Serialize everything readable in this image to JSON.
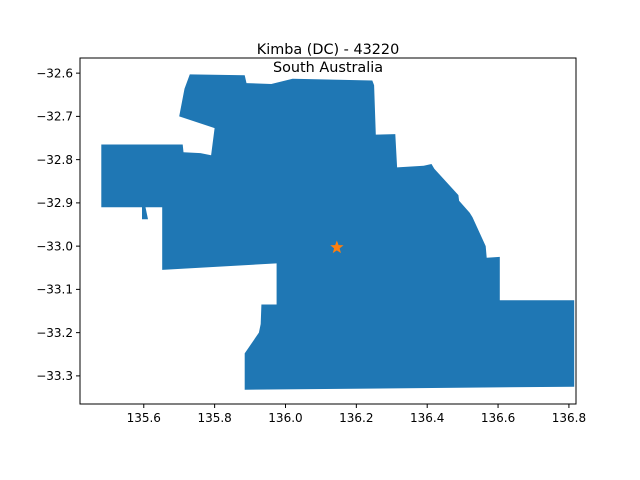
{
  "chart_data": {
    "type": "map",
    "title": "Kimba (DC) - 43220",
    "subtitle": "South Australia",
    "xlabel": "",
    "ylabel": "",
    "xlim": [
      135.42,
      136.82
    ],
    "ylim": [
      -33.365,
      -32.565
    ],
    "xticks": [
      135.6,
      135.8,
      136.0,
      136.2,
      136.4,
      136.6,
      136.8
    ],
    "xtick_labels": [
      "135.6",
      "135.8",
      "136.0",
      "136.2",
      "136.4",
      "136.6",
      "136.8"
    ],
    "yticks": [
      -32.6,
      -32.7,
      -32.8,
      -32.9,
      -33.0,
      -33.1,
      -33.2,
      -33.3
    ],
    "ytick_labels": [
      "−32.6",
      "−32.7",
      "−32.8",
      "−32.9",
      "−33.0",
      "−33.1",
      "−33.2",
      "−33.3"
    ],
    "grid": false,
    "region": {
      "name": "Kimba (DC)",
      "color": "#1f77b4",
      "boundary": [
        [
          135.73,
          -32.603
        ],
        [
          135.885,
          -32.605
        ],
        [
          135.89,
          -32.623
        ],
        [
          135.96,
          -32.625
        ],
        [
          136.02,
          -32.613
        ],
        [
          136.245,
          -32.617
        ],
        [
          136.25,
          -32.628
        ],
        [
          136.255,
          -32.742
        ],
        [
          136.31,
          -32.741
        ],
        [
          136.315,
          -32.818
        ],
        [
          136.39,
          -32.814
        ],
        [
          136.412,
          -32.81
        ],
        [
          136.42,
          -32.821
        ],
        [
          136.488,
          -32.882
        ],
        [
          136.49,
          -32.895
        ],
        [
          136.52,
          -32.923
        ],
        [
          136.528,
          -32.933
        ],
        [
          136.565,
          -33.0
        ],
        [
          136.568,
          -33.027
        ],
        [
          136.605,
          -33.025
        ],
        [
          136.605,
          -33.125
        ],
        [
          136.815,
          -33.125
        ],
        [
          136.815,
          -33.325
        ],
        [
          135.885,
          -33.332
        ],
        [
          135.885,
          -33.248
        ],
        [
          135.925,
          -33.2
        ],
        [
          135.93,
          -33.18
        ],
        [
          135.932,
          -33.135
        ],
        [
          135.975,
          -33.135
        ],
        [
          135.975,
          -33.04
        ],
        [
          135.652,
          -33.055
        ],
        [
          135.652,
          -32.91
        ],
        [
          135.605,
          -32.91
        ],
        [
          135.612,
          -32.938
        ],
        [
          135.595,
          -32.938
        ],
        [
          135.595,
          -32.91
        ],
        [
          135.48,
          -32.91
        ],
        [
          135.48,
          -32.765
        ],
        [
          135.71,
          -32.765
        ],
        [
          135.712,
          -32.783
        ],
        [
          135.76,
          -32.785
        ],
        [
          135.79,
          -32.79
        ],
        [
          135.8,
          -32.727
        ],
        [
          135.7,
          -32.7
        ],
        [
          135.715,
          -32.636
        ]
      ]
    },
    "point": {
      "x": 136.145,
      "y": -33.003,
      "marker": "star",
      "color": "#ff7f0e"
    }
  }
}
